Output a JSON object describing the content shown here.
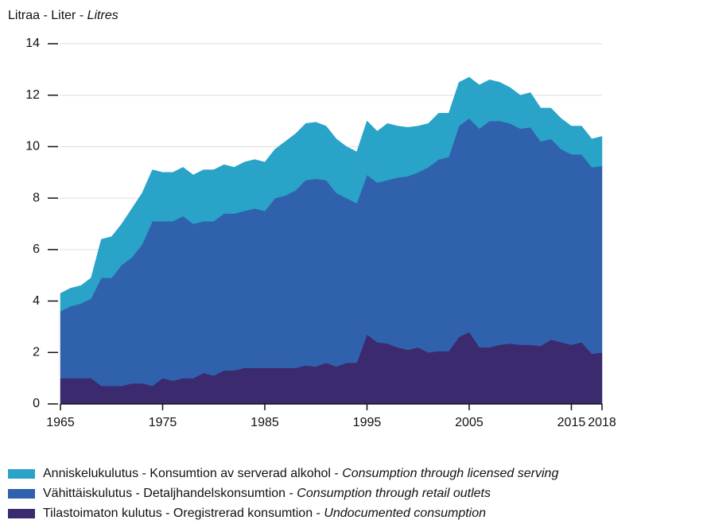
{
  "chart_data": {
    "type": "stacked_area",
    "ylabel": "Litraa - Liter - Litres",
    "x": [
      1965,
      1966,
      1967,
      1968,
      1969,
      1970,
      1971,
      1972,
      1973,
      1974,
      1975,
      1976,
      1977,
      1978,
      1979,
      1980,
      1981,
      1982,
      1983,
      1984,
      1985,
      1986,
      1987,
      1988,
      1989,
      1990,
      1991,
      1992,
      1993,
      1994,
      1995,
      1996,
      1997,
      1998,
      1999,
      2000,
      2001,
      2002,
      2003,
      2004,
      2005,
      2006,
      2007,
      2008,
      2009,
      2010,
      2011,
      2012,
      2013,
      2014,
      2015,
      2016,
      2017,
      2018
    ],
    "series": [
      {
        "name": "Anniskelukulutus - Konsumtion av serverad alkohol - Consumption through licensed serving",
        "color": "#2aa3c8",
        "values": [
          0.7,
          0.7,
          0.7,
          0.8,
          1.5,
          1.6,
          1.6,
          1.9,
          2.0,
          2.0,
          1.9,
          1.9,
          1.9,
          1.9,
          2.0,
          2.0,
          1.9,
          1.8,
          1.9,
          1.9,
          1.9,
          1.9,
          2.1,
          2.2,
          2.2,
          2.2,
          2.1,
          2.1,
          2.0,
          2.0,
          2.1,
          2.0,
          2.2,
          2.0,
          1.9,
          1.8,
          1.7,
          1.8,
          1.7,
          1.7,
          1.6,
          1.7,
          1.6,
          1.5,
          1.4,
          1.3,
          1.35,
          1.3,
          1.2,
          1.2,
          1.1,
          1.1,
          1.1,
          1.15
        ]
      },
      {
        "name": "Vähittäiskulutus - Detaljhandelskonsumtion - Consumption through retail outlets",
        "color": "#3061ad",
        "values": [
          2.6,
          2.8,
          2.9,
          3.1,
          4.2,
          4.2,
          4.7,
          4.9,
          5.4,
          6.4,
          6.1,
          6.2,
          6.3,
          6.0,
          5.9,
          6.0,
          6.1,
          6.1,
          6.1,
          6.2,
          6.1,
          6.6,
          6.7,
          6.9,
          7.2,
          7.3,
          7.1,
          6.75,
          6.4,
          6.2,
          6.2,
          6.2,
          6.35,
          6.6,
          6.75,
          6.8,
          7.2,
          7.45,
          7.55,
          8.2,
          8.3,
          8.5,
          8.8,
          8.7,
          8.55,
          8.4,
          8.45,
          7.95,
          7.8,
          7.5,
          7.4,
          7.3,
          7.25,
          7.25
        ]
      },
      {
        "name": "Tilastoimaton kulutus - Oregistrerad konsumtion - Undocumented consumption",
        "color": "#3b2a6e",
        "values": [
          1.0,
          1.0,
          1.0,
          1.0,
          0.7,
          0.7,
          0.7,
          0.8,
          0.8,
          0.7,
          1.0,
          0.9,
          1.0,
          1.0,
          1.2,
          1.1,
          1.3,
          1.3,
          1.4,
          1.4,
          1.4,
          1.4,
          1.4,
          1.4,
          1.5,
          1.45,
          1.6,
          1.45,
          1.6,
          1.6,
          2.7,
          2.4,
          2.35,
          2.2,
          2.1,
          2.2,
          2.0,
          2.05,
          2.05,
          2.6,
          2.8,
          2.2,
          2.2,
          2.3,
          2.35,
          2.3,
          2.3,
          2.25,
          2.5,
          2.4,
          2.3,
          2.4,
          1.95,
          2.0
        ]
      }
    ],
    "xlim": [
      1965,
      2018
    ],
    "xticks": [
      1965,
      1975,
      1985,
      1995,
      2005,
      2015,
      2018
    ],
    "ylim": [
      0,
      14
    ],
    "yticks": [
      0,
      2,
      4,
      6,
      8,
      10,
      12,
      14
    ],
    "grid": true
  }
}
